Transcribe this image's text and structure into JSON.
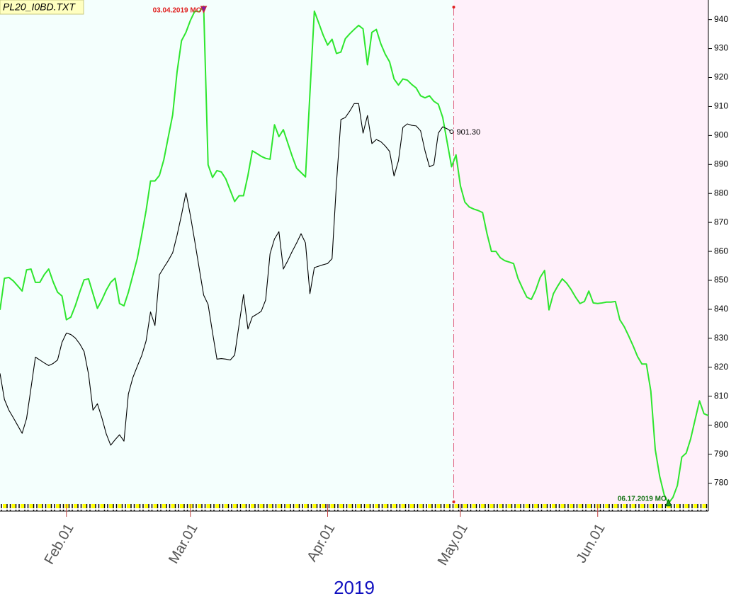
{
  "chart_data": {
    "type": "line",
    "title": "PL20_I0BD.TXT",
    "xlabel": "2019",
    "categories": [
      null,
      null,
      null,
      null,
      null,
      null,
      null,
      null,
      null,
      null,
      null,
      null,
      null,
      null,
      null,
      "Feb.01",
      null,
      null,
      null,
      null,
      null,
      null,
      null,
      null,
      null,
      null,
      null,
      null,
      null,
      null,
      null,
      null,
      null,
      null,
      null,
      null,
      null,
      null,
      null,
      null,
      null,
      null,
      null,
      "Mar.01",
      null,
      null,
      null,
      null,
      null,
      null,
      null,
      null,
      null,
      null,
      null,
      null,
      null,
      null,
      null,
      null,
      null,
      null,
      null,
      null,
      null,
      null,
      null,
      null,
      null,
      null,
      null,
      null,
      null,
      null,
      "Apr.01",
      null,
      null,
      null,
      null,
      null,
      null,
      null,
      null,
      null,
      null,
      null,
      null,
      null,
      null,
      null,
      null,
      null,
      null,
      null,
      null,
      null,
      null,
      null,
      null,
      null,
      null,
      null,
      null,
      null,
      "May.01",
      null,
      null,
      null,
      null,
      null,
      null,
      null,
      null,
      null,
      null,
      null,
      null,
      null,
      null,
      null,
      null,
      null,
      null,
      null,
      null,
      null,
      null,
      null,
      null,
      null,
      null,
      null,
      null,
      null,
      null,
      "Jun.01",
      null,
      null,
      null,
      null,
      null,
      null,
      null,
      null,
      null,
      null,
      null,
      null,
      null,
      null,
      null,
      null,
      null,
      null,
      null,
      null,
      null,
      null,
      null,
      null,
      null
    ],
    "series": [
      {
        "color": "#2ee62e",
        "values": [
          839.8,
          850.7,
          851.0,
          849.8,
          848.1,
          846.3,
          853.6,
          853.9,
          849.3,
          849.3,
          852.0,
          853.9,
          849.5,
          845.9,
          844.6,
          836.4,
          837.3,
          841.2,
          845.9,
          850.2,
          850.5,
          845.4,
          840.3,
          843.2,
          846.6,
          849.3,
          850.7,
          842.0,
          841.2,
          845.9,
          851.7,
          857.5,
          865.6,
          874.1,
          884.3,
          884.3,
          886.2,
          891.6,
          899.4,
          907.1,
          922.0,
          932.7,
          935.6,
          939.7,
          942.9,
          942.7,
          944.6,
          889.9,
          885.5,
          887.9,
          887.4,
          885.0,
          881.1,
          877.2,
          879.2,
          879.2,
          886.2,
          894.7,
          893.8,
          892.8,
          892.1,
          891.8,
          903.7,
          899.6,
          902.0,
          897.4,
          892.8,
          888.7,
          887.2,
          885.7,
          914.4,
          942.9,
          938.8,
          934.6,
          931.2,
          933.2,
          928.3,
          928.8,
          933.4,
          935.1,
          936.6,
          938.0,
          936.8,
          924.4,
          935.6,
          936.6,
          931.7,
          928.1,
          925.4,
          919.5,
          917.4,
          919.5,
          919.1,
          917.6,
          916.4,
          913.7,
          913.0,
          913.7,
          911.8,
          910.8,
          906.2,
          897.7,
          889.2,
          893.3,
          882.6,
          877.0,
          875.3,
          874.6,
          874.1,
          873.4,
          866.1,
          860.0,
          860.0,
          857.8,
          856.8,
          856.3,
          855.8,
          850.7,
          847.3,
          844.2,
          843.4,
          846.6,
          851.0,
          853.4,
          839.8,
          845.4,
          848.1,
          850.5,
          849.0,
          846.8,
          844.2,
          842.0,
          842.7,
          846.3,
          842.2,
          842.0,
          842.2,
          842.5,
          842.5,
          842.7,
          836.4,
          834.0,
          830.8,
          827.4,
          823.7,
          821.1,
          821.1,
          811.8,
          791.6,
          782.4,
          776.1,
          773.1,
          775.1,
          779.2,
          789.0,
          790.4,
          795.3,
          801.9,
          808.4,
          804.0,
          803.3
        ]
      },
      {
        "color": "#000000",
        "values": [
          817.9,
          808.9,
          805.2,
          802.6,
          799.9,
          797.2,
          802.3,
          812.8,
          823.5,
          822.5,
          821.5,
          820.6,
          821.3,
          822.5,
          828.6,
          831.8,
          831.3,
          830.1,
          828.1,
          825.4,
          817.6,
          805.2,
          807.4,
          802.6,
          797.0,
          793.1,
          795.0,
          796.7,
          794.5,
          810.8,
          816.4,
          820.3,
          824.0,
          829.1,
          839.1,
          834.4,
          851.9,
          854.4,
          856.8,
          859.5,
          865.6,
          872.6,
          880.2,
          872.4,
          863.4,
          854.1,
          844.9,
          841.7,
          832.0,
          822.8,
          823.0,
          822.8,
          822.5,
          824.2,
          834.7,
          845.1,
          833.2,
          837.4,
          838.3,
          839.3,
          843.2,
          859.2,
          864.3,
          866.8,
          853.9,
          856.8,
          860.0,
          862.9,
          866.1,
          862.9,
          845.4,
          854.4,
          854.9,
          855.4,
          855.8,
          857.5,
          883.6,
          905.5,
          906.2,
          908.4,
          911.0,
          911.0,
          900.8,
          906.9,
          897.2,
          898.6,
          897.9,
          896.4,
          894.5,
          886.0,
          891.3,
          902.8,
          904.0,
          903.5,
          903.3,
          901.6,
          894.7,
          889.2,
          889.9,
          900.8,
          903.0,
          902.3,
          901.3,
          null,
          null,
          null,
          null,
          null,
          null,
          null,
          null,
          null,
          null,
          null,
          null,
          null,
          null,
          null,
          null,
          null,
          null,
          null,
          null,
          null,
          null,
          null,
          null,
          null,
          null,
          null,
          null,
          null,
          null,
          null,
          null,
          null,
          null,
          null,
          null,
          null,
          null,
          null,
          null,
          null,
          null,
          null,
          null,
          null,
          null,
          null,
          null,
          null,
          null,
          null,
          null,
          null,
          null,
          null,
          null,
          null,
          null
        ],
        "value_labels": [
          null,
          null,
          null,
          null,
          null,
          null,
          null,
          null,
          null,
          null,
          null,
          null,
          null,
          null,
          null,
          null,
          null,
          null,
          null,
          null,
          null,
          null,
          null,
          null,
          null,
          null,
          null,
          null,
          null,
          null,
          null,
          null,
          null,
          null,
          null,
          null,
          null,
          null,
          null,
          null,
          null,
          null,
          null,
          null,
          null,
          null,
          null,
          null,
          null,
          null,
          null,
          null,
          null,
          null,
          null,
          null,
          null,
          null,
          null,
          null,
          null,
          null,
          null,
          null,
          null,
          null,
          null,
          null,
          null,
          null,
          null,
          null,
          null,
          null,
          null,
          null,
          null,
          null,
          null,
          null,
          null,
          null,
          null,
          null,
          null,
          null,
          null,
          null,
          null,
          null,
          null,
          null,
          null,
          null,
          null,
          null,
          null,
          null,
          null,
          null,
          null,
          null,
          "901.30",
          null,
          null,
          null,
          null,
          null,
          null,
          null,
          null,
          null,
          null,
          null,
          null,
          null,
          null,
          null,
          null,
          null,
          null,
          null,
          null,
          null,
          null,
          null,
          null,
          null,
          null,
          null,
          null,
          null,
          null,
          null,
          null,
          null,
          null,
          null,
          null,
          null,
          null,
          null,
          null,
          null,
          null,
          null,
          null,
          null,
          null,
          null,
          null,
          null,
          null,
          null,
          null,
          null,
          null,
          null,
          null,
          null,
          null
        ]
      }
    ],
    "annotations": {
      "high": "03.04.2019 MO",
      "low": "06.17.2019 MO"
    },
    "ylim": [
      772.8,
      944.8
    ],
    "yticks": [
      780,
      790,
      800,
      810,
      820,
      830,
      840,
      850,
      860,
      870,
      880,
      890,
      900,
      910,
      920,
      930,
      940
    ],
    "y_axis_side": "right"
  }
}
